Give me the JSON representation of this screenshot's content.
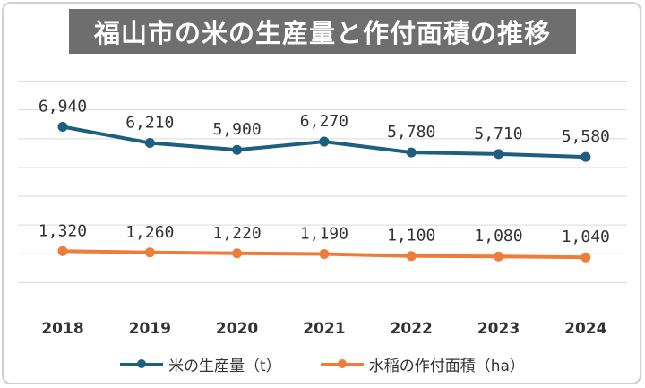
{
  "title": "福山市の米の生産量と作付面積の推移",
  "colors": {
    "series_production": "#1d5f7f",
    "series_area": "#ee7c3a",
    "grid": "#d9d9d9",
    "title_bg": "#6e6e6e"
  },
  "chart_data": {
    "type": "line",
    "title": "福山市の米の生産量と作付面積の推移",
    "categories": [
      "2018",
      "2019",
      "2020",
      "2021",
      "2022",
      "2023",
      "2024"
    ],
    "series": [
      {
        "name": "米の生産量（t）",
        "values": [
          6940,
          6210,
          5900,
          6270,
          5780,
          5710,
          5580
        ],
        "labels": [
          "6,940",
          "6,210",
          "5,900",
          "6,270",
          "5,780",
          "5,710",
          "5,580"
        ]
      },
      {
        "name": "水稲の作付面積（ha）",
        "values": [
          1320,
          1260,
          1220,
          1190,
          1100,
          1080,
          1040
        ],
        "labels": [
          "1,320",
          "1,260",
          "1,220",
          "1,190",
          "1,100",
          "1,080",
          "1,040"
        ]
      }
    ],
    "ylim": [
      -1300,
      9350
    ],
    "grid": true,
    "y_axis_labels_visible": false,
    "legend_position": "bottom"
  }
}
